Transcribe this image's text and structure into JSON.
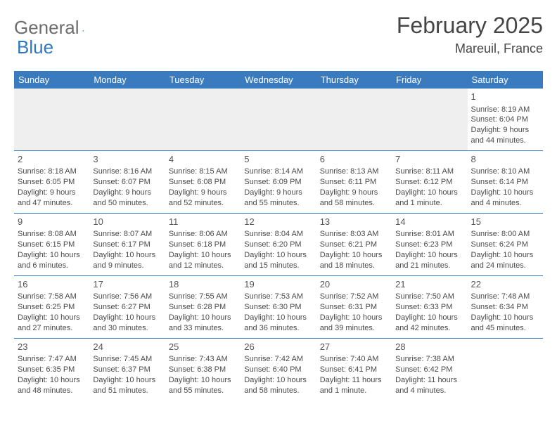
{
  "brand": {
    "name_gray": "General",
    "name_blue": "Blue"
  },
  "header": {
    "month_title": "February 2025",
    "location": "Mareuil, France"
  },
  "colors": {
    "header_bar": "#3a7bbf",
    "rule": "#3a7bbf",
    "brand_blue": "#2f78bf",
    "brand_gray": "#6d6d6d",
    "text": "#4a4a4a",
    "empty_bg": "#efefef",
    "page_bg": "#ffffff"
  },
  "weekdays": [
    "Sunday",
    "Monday",
    "Tuesday",
    "Wednesday",
    "Thursday",
    "Friday",
    "Saturday"
  ],
  "weeks": [
    [
      null,
      null,
      null,
      null,
      null,
      null,
      {
        "n": "1",
        "sr": "Sunrise: 8:19 AM",
        "ss": "Sunset: 6:04 PM",
        "d1": "Daylight: 9 hours",
        "d2": "and 44 minutes."
      }
    ],
    [
      {
        "n": "2",
        "sr": "Sunrise: 8:18 AM",
        "ss": "Sunset: 6:05 PM",
        "d1": "Daylight: 9 hours",
        "d2": "and 47 minutes."
      },
      {
        "n": "3",
        "sr": "Sunrise: 8:16 AM",
        "ss": "Sunset: 6:07 PM",
        "d1": "Daylight: 9 hours",
        "d2": "and 50 minutes."
      },
      {
        "n": "4",
        "sr": "Sunrise: 8:15 AM",
        "ss": "Sunset: 6:08 PM",
        "d1": "Daylight: 9 hours",
        "d2": "and 52 minutes."
      },
      {
        "n": "5",
        "sr": "Sunrise: 8:14 AM",
        "ss": "Sunset: 6:09 PM",
        "d1": "Daylight: 9 hours",
        "d2": "and 55 minutes."
      },
      {
        "n": "6",
        "sr": "Sunrise: 8:13 AM",
        "ss": "Sunset: 6:11 PM",
        "d1": "Daylight: 9 hours",
        "d2": "and 58 minutes."
      },
      {
        "n": "7",
        "sr": "Sunrise: 8:11 AM",
        "ss": "Sunset: 6:12 PM",
        "d1": "Daylight: 10 hours",
        "d2": "and 1 minute."
      },
      {
        "n": "8",
        "sr": "Sunrise: 8:10 AM",
        "ss": "Sunset: 6:14 PM",
        "d1": "Daylight: 10 hours",
        "d2": "and 4 minutes."
      }
    ],
    [
      {
        "n": "9",
        "sr": "Sunrise: 8:08 AM",
        "ss": "Sunset: 6:15 PM",
        "d1": "Daylight: 10 hours",
        "d2": "and 6 minutes."
      },
      {
        "n": "10",
        "sr": "Sunrise: 8:07 AM",
        "ss": "Sunset: 6:17 PM",
        "d1": "Daylight: 10 hours",
        "d2": "and 9 minutes."
      },
      {
        "n": "11",
        "sr": "Sunrise: 8:06 AM",
        "ss": "Sunset: 6:18 PM",
        "d1": "Daylight: 10 hours",
        "d2": "and 12 minutes."
      },
      {
        "n": "12",
        "sr": "Sunrise: 8:04 AM",
        "ss": "Sunset: 6:20 PM",
        "d1": "Daylight: 10 hours",
        "d2": "and 15 minutes."
      },
      {
        "n": "13",
        "sr": "Sunrise: 8:03 AM",
        "ss": "Sunset: 6:21 PM",
        "d1": "Daylight: 10 hours",
        "d2": "and 18 minutes."
      },
      {
        "n": "14",
        "sr": "Sunrise: 8:01 AM",
        "ss": "Sunset: 6:23 PM",
        "d1": "Daylight: 10 hours",
        "d2": "and 21 minutes."
      },
      {
        "n": "15",
        "sr": "Sunrise: 8:00 AM",
        "ss": "Sunset: 6:24 PM",
        "d1": "Daylight: 10 hours",
        "d2": "and 24 minutes."
      }
    ],
    [
      {
        "n": "16",
        "sr": "Sunrise: 7:58 AM",
        "ss": "Sunset: 6:25 PM",
        "d1": "Daylight: 10 hours",
        "d2": "and 27 minutes."
      },
      {
        "n": "17",
        "sr": "Sunrise: 7:56 AM",
        "ss": "Sunset: 6:27 PM",
        "d1": "Daylight: 10 hours",
        "d2": "and 30 minutes."
      },
      {
        "n": "18",
        "sr": "Sunrise: 7:55 AM",
        "ss": "Sunset: 6:28 PM",
        "d1": "Daylight: 10 hours",
        "d2": "and 33 minutes."
      },
      {
        "n": "19",
        "sr": "Sunrise: 7:53 AM",
        "ss": "Sunset: 6:30 PM",
        "d1": "Daylight: 10 hours",
        "d2": "and 36 minutes."
      },
      {
        "n": "20",
        "sr": "Sunrise: 7:52 AM",
        "ss": "Sunset: 6:31 PM",
        "d1": "Daylight: 10 hours",
        "d2": "and 39 minutes."
      },
      {
        "n": "21",
        "sr": "Sunrise: 7:50 AM",
        "ss": "Sunset: 6:33 PM",
        "d1": "Daylight: 10 hours",
        "d2": "and 42 minutes."
      },
      {
        "n": "22",
        "sr": "Sunrise: 7:48 AM",
        "ss": "Sunset: 6:34 PM",
        "d1": "Daylight: 10 hours",
        "d2": "and 45 minutes."
      }
    ],
    [
      {
        "n": "23",
        "sr": "Sunrise: 7:47 AM",
        "ss": "Sunset: 6:35 PM",
        "d1": "Daylight: 10 hours",
        "d2": "and 48 minutes."
      },
      {
        "n": "24",
        "sr": "Sunrise: 7:45 AM",
        "ss": "Sunset: 6:37 PM",
        "d1": "Daylight: 10 hours",
        "d2": "and 51 minutes."
      },
      {
        "n": "25",
        "sr": "Sunrise: 7:43 AM",
        "ss": "Sunset: 6:38 PM",
        "d1": "Daylight: 10 hours",
        "d2": "and 55 minutes."
      },
      {
        "n": "26",
        "sr": "Sunrise: 7:42 AM",
        "ss": "Sunset: 6:40 PM",
        "d1": "Daylight: 10 hours",
        "d2": "and 58 minutes."
      },
      {
        "n": "27",
        "sr": "Sunrise: 7:40 AM",
        "ss": "Sunset: 6:41 PM",
        "d1": "Daylight: 11 hours",
        "d2": "and 1 minute."
      },
      {
        "n": "28",
        "sr": "Sunrise: 7:38 AM",
        "ss": "Sunset: 6:42 PM",
        "d1": "Daylight: 11 hours",
        "d2": "and 4 minutes."
      },
      null
    ]
  ]
}
